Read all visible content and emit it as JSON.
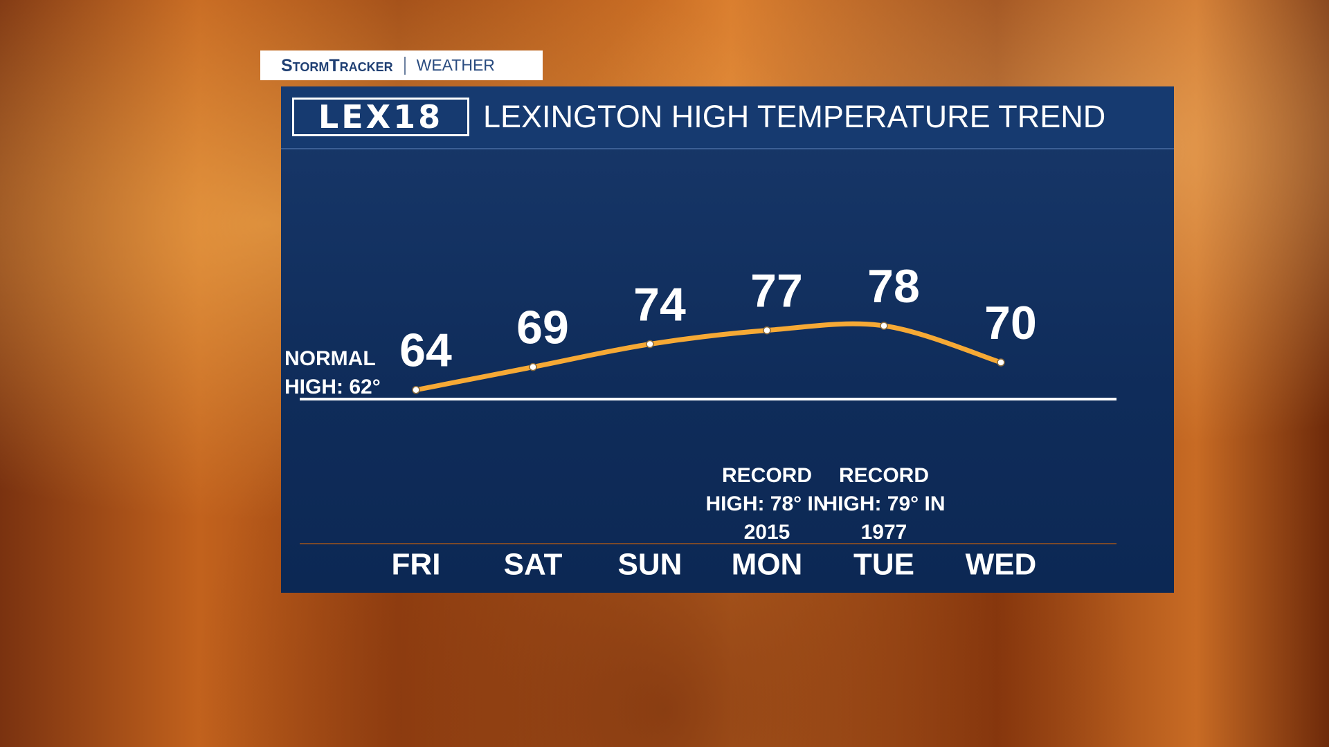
{
  "header": {
    "brand": "StormTracker",
    "section": "WEATHER",
    "logo": "LEX18"
  },
  "chart_data": {
    "type": "line",
    "title": "LEXINGTON HIGH TEMPERATURE TREND",
    "categories": [
      "FRI",
      "SAT",
      "SUN",
      "MON",
      "TUE",
      "WED"
    ],
    "values": [
      64,
      69,
      74,
      77,
      78,
      70
    ],
    "color": "#f6a935",
    "reference_line": {
      "label": "NORMAL HIGH: 62°",
      "value": 62
    },
    "annotations": [
      null,
      null,
      null,
      "RECORD HIGH: 78° IN 2015",
      "RECORD HIGH: 79° IN 1977",
      null
    ]
  }
}
